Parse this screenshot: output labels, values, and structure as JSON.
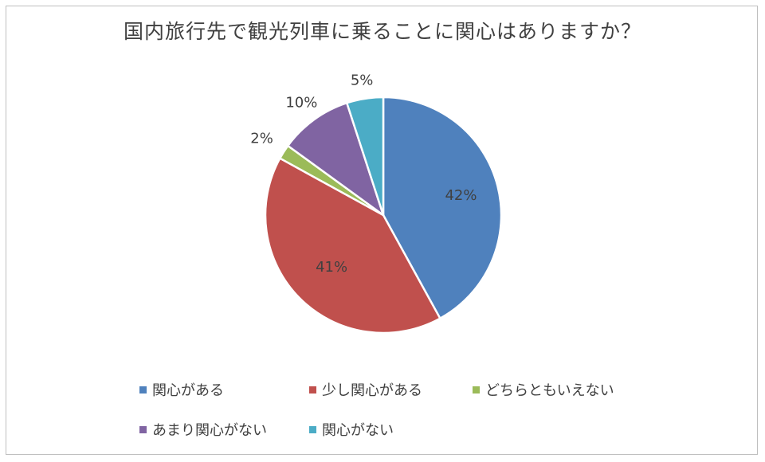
{
  "chart_data": {
    "type": "pie",
    "title": "国内旅行先で観光列車に乗ることに関心はありますか？",
    "slices": [
      {
        "label": "関心がある",
        "value": 42,
        "display": "42%",
        "color": "#4f81bd"
      },
      {
        "label": "少し関心がある",
        "value": 41,
        "display": "41%",
        "color": "#c0504d"
      },
      {
        "label": "どちらともいえない",
        "value": 2,
        "display": "2%",
        "color": "#9bbb59"
      },
      {
        "label": "あまり関心がない",
        "value": 10,
        "display": "10%",
        "color": "#8064a2"
      },
      {
        "label": "関心がない",
        "value": 5,
        "display": "5%",
        "color": "#4bacc6"
      }
    ],
    "legend_position": "bottom"
  }
}
